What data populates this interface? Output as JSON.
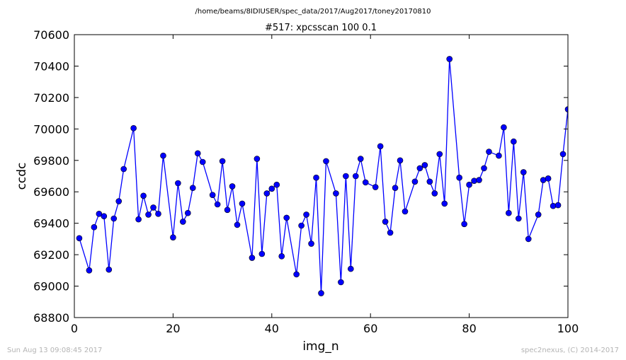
{
  "footer": {
    "timestamp": "Sun Aug 13 09:08:45 2017",
    "credit": "spec2nexus, (C) 2014-2017"
  },
  "chart_data": {
    "type": "line",
    "suptitle": "/home/beams/8IDIUSER/spec_data/2017/Aug2017/toney20170810",
    "title": "#517: xpcsscan 100 0.1",
    "xlabel": "img_n",
    "ylabel": "ccdc",
    "xlim": [
      0,
      100
    ],
    "ylim": [
      68800,
      70600
    ],
    "xticks": [
      0,
      20,
      40,
      60,
      80,
      100
    ],
    "yticks": [
      68800,
      69000,
      69200,
      69400,
      69600,
      69800,
      70000,
      70200,
      70400,
      70600
    ],
    "grid": false,
    "marker": "circle",
    "color": "#0000ff",
    "series": [
      {
        "x": [
          1,
          3,
          4,
          5,
          6,
          7,
          8,
          9,
          10,
          12,
          13,
          14,
          15,
          16,
          17,
          18,
          20,
          21,
          22,
          23,
          24,
          25,
          26,
          28,
          29,
          30,
          31,
          32,
          33,
          34,
          36,
          37,
          38,
          39,
          40,
          41,
          42,
          43,
          45,
          46,
          47,
          48,
          49,
          50,
          51,
          53,
          54,
          55,
          56,
          57,
          58,
          59,
          61,
          62,
          63,
          64,
          65,
          66,
          67,
          69,
          70,
          71,
          72,
          73,
          74,
          75,
          76,
          78,
          79,
          80,
          81,
          82,
          83,
          84,
          86,
          87,
          88,
          89,
          90,
          91,
          92,
          94,
          95,
          96,
          97,
          98,
          99,
          100
        ],
        "y": [
          69305,
          69100,
          69375,
          69460,
          69445,
          69105,
          69430,
          69540,
          69745,
          70005,
          69425,
          69575,
          69455,
          69500,
          69460,
          69830,
          69310,
          69655,
          69410,
          69465,
          69625,
          69845,
          69790,
          69580,
          69520,
          69795,
          69485,
          69635,
          69390,
          69525,
          69180,
          69810,
          69205,
          69590,
          69620,
          69645,
          69190,
          69435,
          69075,
          69385,
          69455,
          69270,
          69690,
          68955,
          69795,
          69590,
          69025,
          69700,
          69110,
          69700,
          69810,
          69660,
          69630,
          69890,
          69410,
          69340,
          69625,
          69800,
          69475,
          69665,
          69750,
          69770,
          69665,
          69590,
          69840,
          69525,
          70445,
          69690,
          69395,
          69645,
          69670,
          69675,
          69750,
          69855,
          69830,
          70010,
          69465,
          69920,
          69430,
          69725,
          69300,
          69455,
          69675,
          69685,
          69510,
          69515,
          69840,
          70125
        ]
      }
    ]
  }
}
